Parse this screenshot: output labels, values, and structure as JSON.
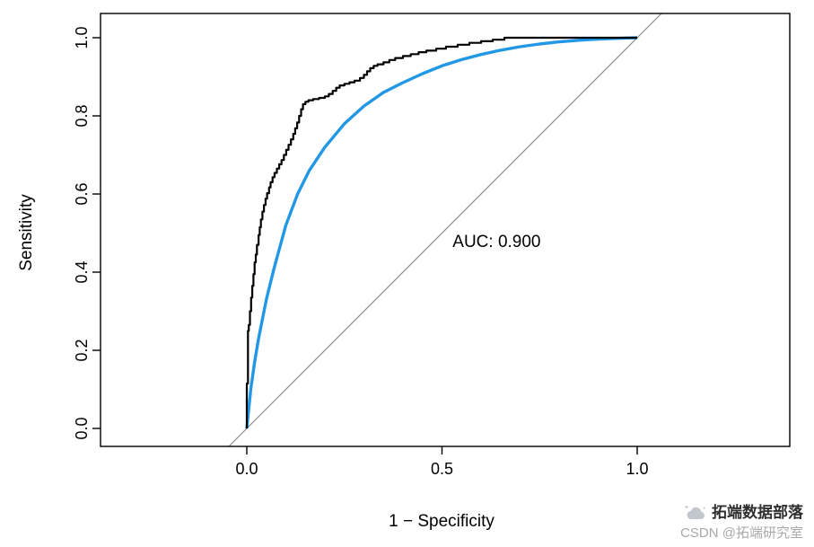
{
  "chart_data": {
    "type": "line",
    "title": "",
    "xlabel": "1 − Specificity",
    "ylabel": "Sensitivity",
    "xlim": [
      0,
      1
    ],
    "ylim": [
      0,
      1
    ],
    "grid": false,
    "legend": null,
    "x_ticks": [
      {
        "value": 0.0,
        "label": "0.0"
      },
      {
        "value": 0.5,
        "label": "0.5"
      },
      {
        "value": 1.0,
        "label": "1.0"
      }
    ],
    "y_ticks": [
      {
        "value": 0.0,
        "label": "0.0"
      },
      {
        "value": 0.2,
        "label": "0.2"
      },
      {
        "value": 0.4,
        "label": "0.4"
      },
      {
        "value": 0.6,
        "label": "0.6"
      },
      {
        "value": 0.8,
        "label": "0.8"
      },
      {
        "value": 1.0,
        "label": "1.0"
      }
    ],
    "annotation": {
      "text": "AUC: 0.900",
      "x": 0.64,
      "y": 0.475
    },
    "series": [
      {
        "name": "chance-diagonal",
        "color": "#8c8c8c",
        "width": 1.2,
        "points": [
          [
            -0.046,
            -0.046
          ],
          [
            1.062,
            1.062
          ]
        ]
      },
      {
        "name": "smoothed-roc",
        "color": "#2297E6",
        "width": 3.4,
        "points": [
          [
            0,
            0
          ],
          [
            0.01,
            0.1
          ],
          [
            0.02,
            0.17
          ],
          [
            0.03,
            0.23
          ],
          [
            0.05,
            0.33
          ],
          [
            0.07,
            0.41
          ],
          [
            0.1,
            0.52
          ],
          [
            0.13,
            0.6
          ],
          [
            0.16,
            0.66
          ],
          [
            0.2,
            0.72
          ],
          [
            0.25,
            0.78
          ],
          [
            0.3,
            0.825
          ],
          [
            0.35,
            0.86
          ],
          [
            0.4,
            0.885
          ],
          [
            0.45,
            0.908
          ],
          [
            0.5,
            0.928
          ],
          [
            0.55,
            0.944
          ],
          [
            0.6,
            0.957
          ],
          [
            0.65,
            0.968
          ],
          [
            0.7,
            0.977
          ],
          [
            0.75,
            0.984
          ],
          [
            0.8,
            0.9895
          ],
          [
            0.85,
            0.9935
          ],
          [
            0.9,
            0.9965
          ],
          [
            0.95,
            0.9985
          ],
          [
            1.0,
            1.0
          ]
        ]
      },
      {
        "name": "empirical-roc",
        "color": "#000000",
        "width": 2.2,
        "points": [
          [
            0,
            0
          ],
          [
            0,
            0.115
          ],
          [
            0.003,
            0.115
          ],
          [
            0.003,
            0.25
          ],
          [
            0.005,
            0.25
          ],
          [
            0.005,
            0.265
          ],
          [
            0.008,
            0.265
          ],
          [
            0.008,
            0.3
          ],
          [
            0.011,
            0.3
          ],
          [
            0.011,
            0.335
          ],
          [
            0.014,
            0.335
          ],
          [
            0.014,
            0.365
          ],
          [
            0.017,
            0.365
          ],
          [
            0.017,
            0.395
          ],
          [
            0.02,
            0.395
          ],
          [
            0.02,
            0.425
          ],
          [
            0.023,
            0.425
          ],
          [
            0.023,
            0.445
          ],
          [
            0.026,
            0.445
          ],
          [
            0.026,
            0.47
          ],
          [
            0.03,
            0.47
          ],
          [
            0.03,
            0.495
          ],
          [
            0.033,
            0.495
          ],
          [
            0.033,
            0.515
          ],
          [
            0.036,
            0.515
          ],
          [
            0.036,
            0.535
          ],
          [
            0.04,
            0.535
          ],
          [
            0.04,
            0.555
          ],
          [
            0.044,
            0.555
          ],
          [
            0.044,
            0.572
          ],
          [
            0.048,
            0.572
          ],
          [
            0.048,
            0.588
          ],
          [
            0.052,
            0.588
          ],
          [
            0.052,
            0.602
          ],
          [
            0.057,
            0.602
          ],
          [
            0.057,
            0.617
          ],
          [
            0.061,
            0.617
          ],
          [
            0.061,
            0.63
          ],
          [
            0.066,
            0.63
          ],
          [
            0.066,
            0.643
          ],
          [
            0.071,
            0.643
          ],
          [
            0.071,
            0.654
          ],
          [
            0.077,
            0.654
          ],
          [
            0.077,
            0.665
          ],
          [
            0.083,
            0.665
          ],
          [
            0.083,
            0.676
          ],
          [
            0.089,
            0.676
          ],
          [
            0.089,
            0.687
          ],
          [
            0.095,
            0.687
          ],
          [
            0.095,
            0.7
          ],
          [
            0.101,
            0.7
          ],
          [
            0.101,
            0.713
          ],
          [
            0.107,
            0.713
          ],
          [
            0.107,
            0.726
          ],
          [
            0.113,
            0.726
          ],
          [
            0.113,
            0.74
          ],
          [
            0.119,
            0.74
          ],
          [
            0.119,
            0.754
          ],
          [
            0.124,
            0.754
          ],
          [
            0.124,
            0.768
          ],
          [
            0.129,
            0.768
          ],
          [
            0.129,
            0.783
          ],
          [
            0.134,
            0.783
          ],
          [
            0.134,
            0.8
          ],
          [
            0.139,
            0.8
          ],
          [
            0.139,
            0.817
          ],
          [
            0.144,
            0.817
          ],
          [
            0.144,
            0.83
          ],
          [
            0.15,
            0.83
          ],
          [
            0.15,
            0.836
          ],
          [
            0.158,
            0.836
          ],
          [
            0.158,
            0.84
          ],
          [
            0.17,
            0.84
          ],
          [
            0.17,
            0.843
          ],
          [
            0.185,
            0.843
          ],
          [
            0.185,
            0.846
          ],
          [
            0.2,
            0.846
          ],
          [
            0.2,
            0.85
          ],
          [
            0.21,
            0.85
          ],
          [
            0.21,
            0.856
          ],
          [
            0.22,
            0.856
          ],
          [
            0.22,
            0.864
          ],
          [
            0.229,
            0.864
          ],
          [
            0.229,
            0.872
          ],
          [
            0.238,
            0.872
          ],
          [
            0.238,
            0.878
          ],
          [
            0.25,
            0.878
          ],
          [
            0.25,
            0.882
          ],
          [
            0.263,
            0.882
          ],
          [
            0.263,
            0.886
          ],
          [
            0.276,
            0.886
          ],
          [
            0.276,
            0.89
          ],
          [
            0.29,
            0.89
          ],
          [
            0.29,
            0.897
          ],
          [
            0.3,
            0.897
          ],
          [
            0.3,
            0.905
          ],
          [
            0.308,
            0.905
          ],
          [
            0.308,
            0.914
          ],
          [
            0.316,
            0.914
          ],
          [
            0.316,
            0.922
          ],
          [
            0.325,
            0.922
          ],
          [
            0.325,
            0.928
          ],
          [
            0.335,
            0.928
          ],
          [
            0.335,
            0.932
          ],
          [
            0.35,
            0.932
          ],
          [
            0.35,
            0.937
          ],
          [
            0.365,
            0.937
          ],
          [
            0.365,
            0.943
          ],
          [
            0.38,
            0.943
          ],
          [
            0.38,
            0.948
          ],
          [
            0.4,
            0.948
          ],
          [
            0.4,
            0.953
          ],
          [
            0.42,
            0.953
          ],
          [
            0.42,
            0.958
          ],
          [
            0.44,
            0.958
          ],
          [
            0.44,
            0.963
          ],
          [
            0.46,
            0.963
          ],
          [
            0.46,
            0.967
          ],
          [
            0.485,
            0.967
          ],
          [
            0.485,
            0.972
          ],
          [
            0.51,
            0.972
          ],
          [
            0.51,
            0.977
          ],
          [
            0.54,
            0.977
          ],
          [
            0.54,
            0.982
          ],
          [
            0.57,
            0.982
          ],
          [
            0.57,
            0.987
          ],
          [
            0.6,
            0.987
          ],
          [
            0.6,
            0.991
          ],
          [
            0.63,
            0.991
          ],
          [
            0.63,
            0.995
          ],
          [
            0.66,
            0.995
          ],
          [
            0.66,
            1.0
          ],
          [
            1.0,
            1.0
          ]
        ]
      }
    ]
  },
  "watermark": {
    "brand": "拓端数据部落",
    "credit": "CSDN @拓端研究室"
  }
}
